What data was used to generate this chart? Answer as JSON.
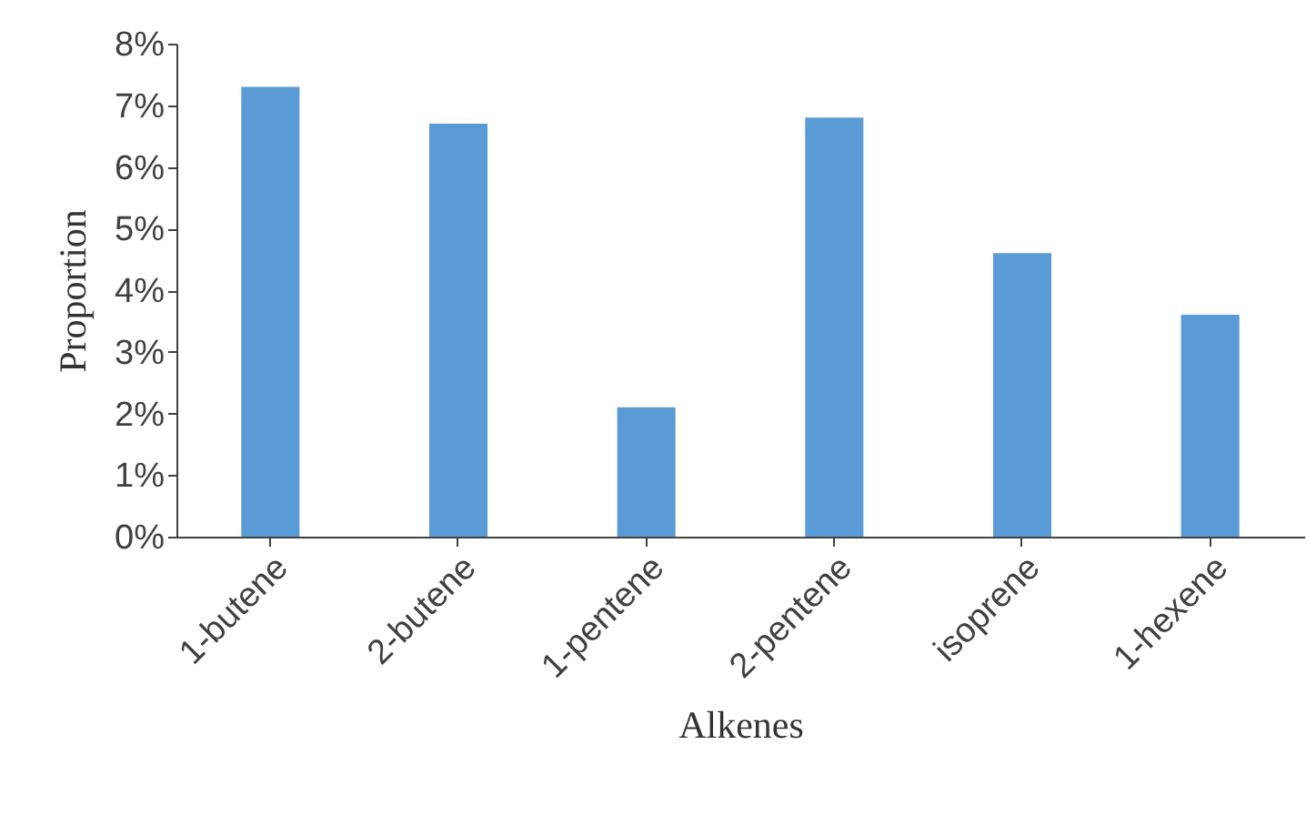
{
  "chart_data": {
    "type": "bar",
    "xlabel": "Alkenes",
    "ylabel": "Proportion",
    "categories": [
      "1-butene",
      "2-butene",
      "1-pentene",
      "2-pentene",
      "isoprene",
      "1-hexene"
    ],
    "values": [
      7.3,
      6.7,
      2.1,
      6.8,
      4.6,
      3.6
    ],
    "color": "#5b9bd5",
    "ylim": [
      0,
      8
    ],
    "yticks": [
      {
        "value": 0,
        "label": "0%"
      },
      {
        "value": 1,
        "label": "1%"
      },
      {
        "value": 2,
        "label": "2%"
      },
      {
        "value": 3,
        "label": "3%"
      },
      {
        "value": 4,
        "label": "4%"
      },
      {
        "value": 5,
        "label": "5%"
      },
      {
        "value": 6,
        "label": "6%"
      },
      {
        "value": 7,
        "label": "7%"
      },
      {
        "value": 8,
        "label": "8%"
      }
    ],
    "grid": false
  }
}
